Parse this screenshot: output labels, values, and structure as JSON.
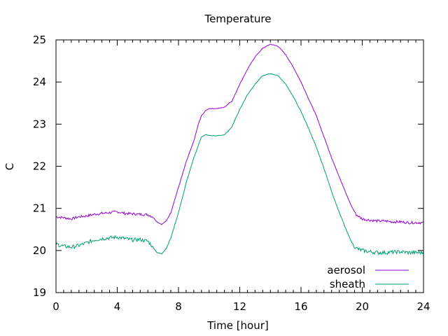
{
  "chart_data": {
    "type": "line",
    "title": "Temperature",
    "xlabel": "Time [hour]",
    "ylabel": "C",
    "xlim": [
      0,
      24
    ],
    "ylim": [
      19,
      25
    ],
    "xticks": [
      0,
      4,
      8,
      12,
      16,
      20,
      24
    ],
    "yticks": [
      19,
      20,
      21,
      22,
      23,
      24,
      25
    ],
    "grid": false,
    "legend_position": "bottom-right",
    "series": [
      {
        "name": "aerosol",
        "color": "#9400d3",
        "x": [
          0,
          0.5,
          1,
          1.5,
          2,
          2.5,
          3,
          3.5,
          4,
          4.5,
          5,
          5.5,
          6,
          6.3,
          6.6,
          6.9,
          7.2,
          7.5,
          8,
          8.5,
          9,
          9.3,
          9.5,
          9.8,
          10,
          10.5,
          11,
          11.3,
          11.5,
          12,
          12.5,
          13,
          13.5,
          14,
          14.5,
          15,
          15.5,
          16,
          16.5,
          17,
          17.5,
          18,
          18.5,
          19,
          19.3,
          19.6,
          20,
          20.5,
          21,
          21.5,
          22,
          22.5,
          23,
          23.5,
          24
        ],
        "y": [
          20.8,
          20.78,
          20.75,
          20.8,
          20.82,
          20.86,
          20.88,
          20.9,
          20.92,
          20.88,
          20.87,
          20.86,
          20.85,
          20.8,
          20.68,
          20.62,
          20.7,
          20.9,
          21.5,
          22.1,
          22.6,
          23.0,
          23.2,
          23.33,
          23.37,
          23.37,
          23.4,
          23.5,
          23.55,
          23.95,
          24.3,
          24.6,
          24.8,
          24.9,
          24.85,
          24.65,
          24.35,
          24.0,
          23.6,
          23.2,
          22.7,
          22.2,
          21.75,
          21.3,
          21.05,
          20.85,
          20.75,
          20.72,
          20.7,
          20.7,
          20.68,
          20.68,
          20.66,
          20.66,
          20.66
        ]
      },
      {
        "name": "sheath",
        "color": "#009e73",
        "x": [
          0,
          0.5,
          1,
          1.5,
          2,
          2.5,
          3,
          3.5,
          4,
          4.5,
          5,
          5.5,
          6,
          6.3,
          6.6,
          6.9,
          7.2,
          7.5,
          8,
          8.5,
          9,
          9.3,
          9.5,
          9.8,
          10,
          10.5,
          11,
          11.3,
          11.5,
          12,
          12.5,
          13,
          13.5,
          14,
          14.5,
          15,
          15.5,
          16,
          16.5,
          17,
          17.5,
          18,
          18.5,
          19,
          19.3,
          19.6,
          20,
          20.5,
          21,
          21.5,
          22,
          22.5,
          23,
          23.5,
          24
        ],
        "y": [
          20.15,
          20.1,
          20.08,
          20.12,
          20.18,
          20.25,
          20.28,
          20.3,
          20.32,
          20.28,
          20.25,
          20.26,
          20.22,
          20.1,
          19.95,
          19.92,
          20.05,
          20.3,
          20.9,
          21.6,
          22.2,
          22.5,
          22.7,
          22.75,
          22.73,
          22.72,
          22.75,
          22.85,
          22.95,
          23.35,
          23.7,
          23.95,
          24.15,
          24.2,
          24.15,
          23.95,
          23.65,
          23.3,
          22.9,
          22.45,
          21.95,
          21.4,
          20.9,
          20.45,
          20.2,
          20.05,
          20.0,
          19.97,
          19.95,
          19.95,
          19.96,
          19.97,
          19.95,
          19.95,
          19.95
        ]
      }
    ]
  }
}
